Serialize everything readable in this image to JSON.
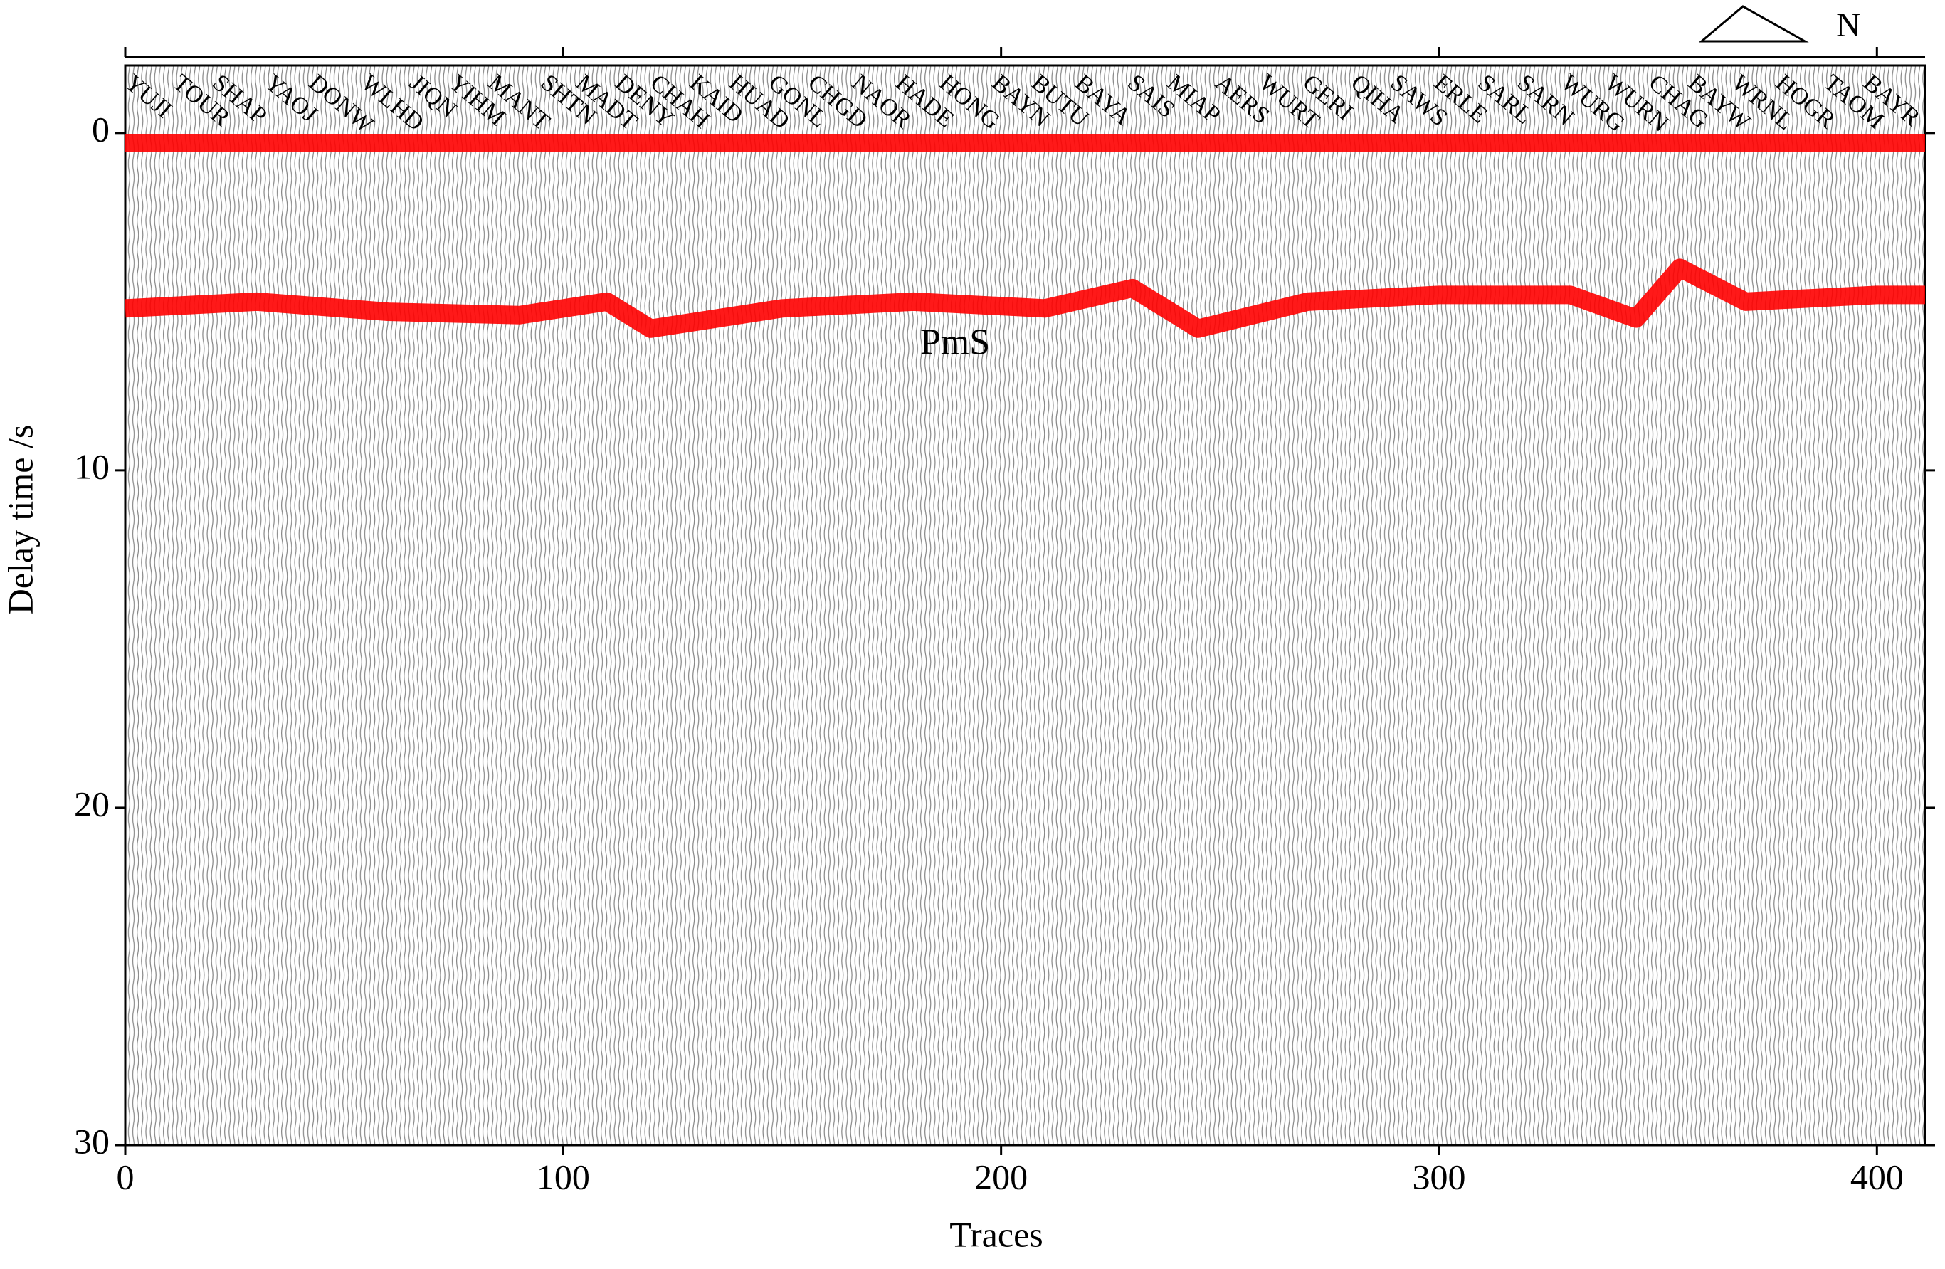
{
  "chart_data": {
    "type": "line",
    "x_label": "Traces",
    "y_label": "Delay time /s",
    "xlim": [
      0,
      411
    ],
    "ylim": [
      -2,
      30
    ],
    "y_inverted": true,
    "xticks": [
      0,
      100,
      200,
      300,
      400
    ],
    "yticks": [
      0,
      10,
      20,
      30
    ],
    "north_label": "N",
    "stations": {
      "names": [
        "YUJI",
        "TOUR",
        "SHAP",
        "YAOJ",
        "DONW",
        "WLHD",
        "JIQN",
        "YIHM",
        "MANT",
        "SHTN",
        "MADT",
        "DENY",
        "CHAH",
        "KAID",
        "HUAD",
        "GONL",
        "CHGD",
        "NAOR",
        "HADE",
        "HONG",
        "BAYN",
        "BUTU",
        "BAYA",
        "SAIS",
        "MIAP",
        "AERS",
        "WURT",
        "GERI",
        "QIHA",
        "SAWS",
        "ERLE",
        "SARL",
        "SARN",
        "WURG",
        "WURN",
        "CHAG",
        "BAYW",
        "WRNL",
        "HOGR",
        "TAOM",
        "BAYR"
      ],
      "x": [
        2,
        13,
        22,
        34,
        44,
        56,
        67,
        76,
        85,
        97,
        105,
        114,
        122,
        131,
        140,
        149,
        158,
        168,
        178,
        188,
        200,
        209,
        219,
        231,
        240,
        251,
        261,
        271,
        282,
        291,
        301,
        311,
        320,
        330,
        340,
        350,
        359,
        369,
        379,
        390,
        399
      ]
    },
    "annotations": [
      {
        "text": "PmS",
        "x": 189.5,
        "y": 6.3
      }
    ],
    "series": [
      {
        "color": "#ff0000",
        "x": [
          0,
          411
        ],
        "values": [
          0.3,
          0.3
        ]
      },
      {
        "color": "#ff0000",
        "x": [
          0,
          30,
          60,
          90,
          110,
          120,
          150,
          180,
          210,
          230,
          245,
          270,
          300,
          330,
          345,
          355,
          370,
          400,
          411
        ],
        "values": [
          5.2,
          5.0,
          5.3,
          5.4,
          5.0,
          5.8,
          5.2,
          5.0,
          5.2,
          4.6,
          5.8,
          5.0,
          4.8,
          4.8,
          5.5,
          4.0,
          5.0,
          4.8,
          4.8
        ]
      }
    ]
  }
}
